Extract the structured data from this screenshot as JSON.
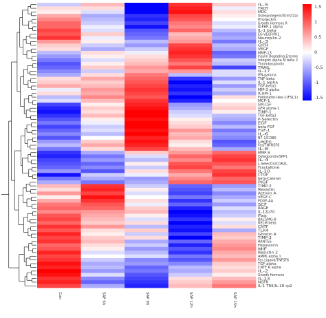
{
  "chart_data": {
    "type": "heatmap",
    "columns": [
      "Con",
      "SAP 6h",
      "SAP 9h",
      "SAP 12h",
      "SAP 15h"
    ],
    "rows": [
      "IL-5",
      "TROY",
      "MDC",
      "Osteoprotegerin/Tcnfrsf11b",
      "Prolactin",
      "Growth Hormone R",
      "IGFBP-1 alpha",
      "IL-1 beta",
      "EG-VEGF/PK1",
      "Neuropilin-2",
      "IL-3",
      "GITR",
      "VEGF",
      "MMP-13",
      "Insulin Degrading Enzyme",
      "Integrin alpha M beta 2",
      "Thrombospondin",
      "TRAIL",
      "IL-17",
      "IFN-gamma",
      "TNF-beta",
      "IL-1 alpha",
      "TGF-beta1",
      "MIP-3 alpha",
      "ICAM-1",
      "Follistatin-like-1(FSL1)",
      "MCP-1",
      "GM-CSF",
      "GFR alpha-1",
      "TIMP-1",
      "TGF-beta2",
      "P-Selectin",
      "EGF",
      "beta-FGF",
      "FGF-1",
      "IL-6",
      "B7-1/CD80",
      "Leptin",
      "Fas/TNFRSF6",
      "IL-8",
      "MMP-9",
      "Osteopontin/SPP1",
      "IL-4",
      "L-Selectin/CD62L",
      "Fractalkine",
      "IL-10",
      "CTGF",
      "beta-Catenin",
      "PIGF",
      "TIMP-2",
      "Resistin",
      "Activin A",
      "VEGF-C",
      "PDGF-AA",
      "SCF",
      "RAGE",
      "IL-12p70",
      "Fas",
      "BALT/MG-8",
      "RELM beta",
      "CNTF",
      "TLR4",
      "Ghrelin A",
      "TIMP-3",
      "RANTES",
      "Hepassocin",
      "MIF",
      "Resistin 2",
      "AMPK alpha 1",
      "Fas Ligand/TNFSF6",
      "TGF-alpha",
      "CNTF R alpha",
      "IL-2",
      "Growth Hormone",
      "IL-13",
      "NGFR",
      "IL-1 TRII/IL-1R rp2"
    ],
    "row_labels_printed": [
      "IL-5",
      "TROY",
      "MDC",
      "Osteoprotegerin/Tcnfrsf11b",
      "Prolactin",
      "Growth Hormone R",
      "IGFBP-1 alpha",
      "IL-1 beta",
      "EG-VEGF/PK1",
      "Neuropilin-2",
      "IL-3",
      "GITR",
      "VEGF",
      "MMP-13",
      "Insulin Degrading Enzyme",
      "Integrin alpha M beta 2",
      "Thrombospondin",
      "TRAIL",
      "IL-17",
      "IFN-gamma",
      "TNF-beta",
      "IL-1 alpha",
      "TGF-beta1",
      "MIP-3 alpha",
      "ICAM-1",
      "Follistatin-like-1(FSL1)",
      "MCP-1",
      "GM-CSF",
      "GFR alpha-1",
      "TIMP-1",
      "TGF-beta2",
      "P-Selectin",
      "EGF",
      "beta-FGF",
      "FGF-1",
      "IL-6",
      "B7-1/CD80",
      "Leptin",
      "Fas/TNFRSF6",
      "IL-8",
      "MMP-9",
      "Osteopontin/SPP1",
      "IL-4",
      "L-Selectin/CD62L",
      "Fractalkine",
      "IL-10",
      "CTGF",
      "beta-Catenin",
      "PIGF",
      "TIMP-2",
      "Resistin",
      "Activin A",
      "VEGF-C",
      "PDGF-AA",
      "SCF",
      "RAGE",
      "IL-12p70",
      "Fas",
      "BALT/MG-8",
      "RELM beta",
      "CNTF",
      "TLR4",
      "Ghrelin A",
      "TIMP-3",
      "RANTES",
      "Hepassocin",
      "MIF",
      "Resistin 2",
      "AMPK alpha 1",
      "Fas Ligand/TNFSF6",
      "TGF-alpha",
      "CNTF R alpha",
      "IL-2",
      "Growth Hormone",
      "IL-13",
      "NGFR",
      "IL-1 TRII/IL-1R rp2"
    ],
    "values": [
      [
        -0.3,
        0.4,
        -1.5,
        1.2,
        0.3
      ],
      [
        0.2,
        0.2,
        -1.5,
        1.3,
        -0.1
      ],
      [
        0.1,
        -0.2,
        -1.5,
        1.4,
        0.2
      ],
      [
        0.5,
        -0.5,
        -1.2,
        1.1,
        0.1
      ],
      [
        0.7,
        -0.4,
        -1.3,
        1.0,
        0.0
      ],
      [
        0.9,
        -0.3,
        -1.1,
        0.8,
        -0.2
      ],
      [
        0.9,
        -0.1,
        -1.4,
        0.7,
        -0.1
      ],
      [
        1.1,
        -0.2,
        -1.0,
        0.9,
        -0.4
      ],
      [
        1.0,
        0.3,
        -0.9,
        0.4,
        -0.6
      ],
      [
        1.2,
        -0.1,
        -0.8,
        0.5,
        -0.5
      ],
      [
        0.6,
        0.1,
        -0.4,
        0.6,
        -0.8
      ],
      [
        0.3,
        -0.3,
        -0.6,
        1.1,
        -0.4
      ],
      [
        0.2,
        -0.5,
        -0.3,
        1.2,
        -0.5
      ],
      [
        -0.4,
        0.2,
        -0.1,
        1.3,
        -0.9
      ],
      [
        -0.6,
        0.1,
        0.2,
        1.2,
        -0.8
      ],
      [
        -0.8,
        -0.2,
        0.3,
        1.0,
        -0.3
      ],
      [
        -1.0,
        0.1,
        0.4,
        0.8,
        -0.4
      ],
      [
        -0.9,
        0.3,
        0.6,
        1.1,
        -1.1
      ],
      [
        -0.7,
        -0.3,
        0.5,
        0.6,
        -0.2
      ],
      [
        -0.5,
        0.2,
        0.8,
        -0.4,
        -0.2
      ],
      [
        0.2,
        0.5,
        0.9,
        -1.2,
        -0.6
      ],
      [
        0.3,
        0.3,
        1.0,
        -1.5,
        -0.2
      ],
      [
        0.5,
        0.4,
        1.1,
        -1.3,
        -0.6
      ],
      [
        -0.1,
        0.6,
        1.2,
        -1.4,
        -0.3
      ],
      [
        0.2,
        0.5,
        1.1,
        -1.2,
        -0.5
      ],
      [
        -0.4,
        0.7,
        1.0,
        -1.5,
        0.2
      ],
      [
        -0.2,
        0.4,
        1.2,
        -1.3,
        0.0
      ],
      [
        -1.1,
        0.1,
        1.3,
        -0.6,
        0.2
      ],
      [
        -1.3,
        0.3,
        1.4,
        -0.5,
        0.3
      ],
      [
        -1.4,
        0.2,
        1.5,
        -0.3,
        0.1
      ],
      [
        -1.2,
        0.4,
        1.5,
        -0.2,
        -0.4
      ],
      [
        -1.0,
        0.1,
        1.4,
        0.1,
        -0.5
      ],
      [
        -0.8,
        -0.1,
        1.5,
        0.2,
        -0.7
      ],
      [
        -1.1,
        -0.3,
        1.5,
        0.3,
        -0.4
      ],
      [
        -0.9,
        -0.2,
        1.4,
        0.6,
        -0.8
      ],
      [
        -0.7,
        -0.4,
        1.5,
        0.4,
        -0.6
      ],
      [
        -1.0,
        0.0,
        1.3,
        0.5,
        -0.7
      ],
      [
        -0.6,
        0.3,
        1.4,
        0.2,
        -1.0
      ],
      [
        -0.4,
        0.5,
        1.3,
        0.1,
        -0.9
      ],
      [
        -0.8,
        0.2,
        1.1,
        0.4,
        -0.5
      ],
      [
        -1.2,
        -0.5,
        0.3,
        0.6,
        0.9
      ],
      [
        -1.3,
        -0.8,
        -0.2,
        0.9,
        1.1
      ],
      [
        -1.1,
        -0.6,
        -0.4,
        0.7,
        1.2
      ],
      [
        -1.0,
        -0.9,
        0.1,
        1.0,
        1.0
      ],
      [
        -0.9,
        -0.7,
        -0.3,
        1.1,
        0.8
      ],
      [
        -0.6,
        -1.0,
        0.2,
        0.8,
        1.1
      ],
      [
        -1.4,
        -0.3,
        -0.1,
        0.5,
        1.2
      ],
      [
        -0.8,
        -0.5,
        -0.6,
        0.7,
        0.9
      ],
      [
        -0.5,
        -0.8,
        -0.5,
        0.9,
        1.0
      ],
      [
        0.4,
        1.2,
        -0.3,
        -0.9,
        -0.6
      ],
      [
        0.2,
        1.3,
        0.1,
        -1.0,
        -0.4
      ],
      [
        0.6,
        1.1,
        -0.2,
        -1.1,
        -0.7
      ],
      [
        0.1,
        1.4,
        0.0,
        -0.8,
        -0.5
      ],
      [
        0.5,
        1.2,
        0.2,
        -1.2,
        -0.3
      ],
      [
        0.8,
        1.0,
        -0.1,
        -0.9,
        -0.6
      ],
      [
        0.9,
        0.9,
        0.3,
        -1.3,
        -0.2
      ],
      [
        0.7,
        0.6,
        0.4,
        -1.5,
        -0.4
      ],
      [
        1.0,
        0.5,
        0.1,
        -1.4,
        -0.3
      ],
      [
        1.1,
        0.4,
        -0.2,
        -1.2,
        0.1
      ],
      [
        0.9,
        0.3,
        0.2,
        -1.5,
        -0.2
      ],
      [
        1.2,
        0.6,
        -0.4,
        -1.3,
        0.2
      ],
      [
        1.0,
        0.2,
        0.3,
        -1.4,
        -0.5
      ],
      [
        1.3,
        0.1,
        -0.3,
        -1.1,
        0.4
      ],
      [
        1.1,
        0.3,
        0.2,
        -1.5,
        0.3
      ],
      [
        1.2,
        0.4,
        -0.5,
        -0.9,
        0.5
      ],
      [
        0.9,
        0.2,
        -0.3,
        -1.3,
        0.6
      ],
      [
        1.0,
        0.1,
        -0.6,
        -1.0,
        0.7
      ],
      [
        1.3,
        -0.2,
        -0.4,
        -1.2,
        0.5
      ],
      [
        1.1,
        0.0,
        -0.2,
        -0.8,
        0.4
      ],
      [
        1.2,
        -0.3,
        -0.7,
        -1.0,
        0.6
      ],
      [
        1.4,
        -0.5,
        -0.6,
        -0.7,
        0.3
      ],
      [
        1.3,
        -0.4,
        -0.9,
        -0.4,
        0.2
      ],
      [
        1.5,
        -0.6,
        -0.8,
        -0.5,
        0.3
      ],
      [
        1.4,
        -0.2,
        -1.0,
        -0.3,
        0.1
      ],
      [
        1.2,
        -0.7,
        -1.1,
        0.2,
        0.4
      ],
      [
        1.3,
        -0.9,
        -1.2,
        0.3,
        0.6
      ],
      [
        1.1,
        -0.5,
        -1.3,
        0.4,
        0.8
      ]
    ],
    "color_scale": {
      "min": -1.5,
      "max": 1.5,
      "low_color": "#0000ff",
      "mid_color": "#ffffff",
      "high_color": "#ff0000",
      "ticks": [
        "1.5",
        "1",
        "0.5",
        "0",
        "-0.5",
        "-1",
        "-1.5"
      ]
    },
    "xlabel": "",
    "ylabel": "",
    "title": ""
  }
}
